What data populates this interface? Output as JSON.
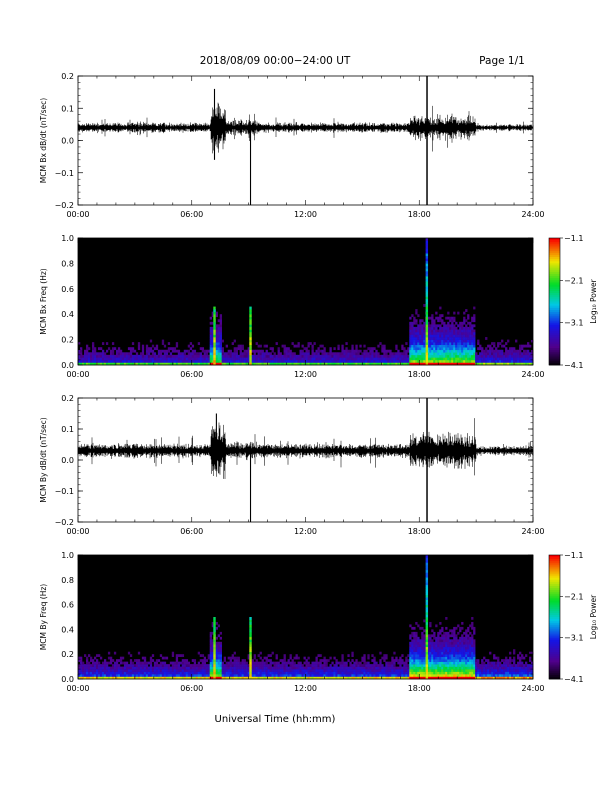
{
  "header": {
    "title": "2018/08/09  00:00−24:00 UT",
    "page": "Page 1/1"
  },
  "x_axis_label": "Universal Time (hh:mm)",
  "colorbar_title": "Log₁₀ Power",
  "chart_data": [
    {
      "type": "line",
      "ylabel": "MCM Bx dB/dt (nT/sec)",
      "x_range_hours": [
        0,
        24
      ],
      "x_ticks": [
        "00:00",
        "06:00",
        "12:00",
        "18:00",
        "24:00"
      ],
      "ylim": [
        -0.2,
        0.2
      ],
      "y_ticks": [
        "0.2",
        "0.1",
        "0.0",
        "−0.1",
        "−0.2"
      ],
      "y_tick_values": [
        0.2,
        0.1,
        0.0,
        -0.1,
        -0.2
      ],
      "baseline": 0.04,
      "noise_envelope": [
        {
          "from": 0.0,
          "to": 7.0,
          "amp": 0.012
        },
        {
          "from": 7.0,
          "to": 7.8,
          "amp": 0.06
        },
        {
          "from": 7.8,
          "to": 9.5,
          "amp": 0.018
        },
        {
          "from": 9.5,
          "to": 17.5,
          "amp": 0.012
        },
        {
          "from": 17.5,
          "to": 21.0,
          "amp": 0.03
        },
        {
          "from": 21.0,
          "to": 24.0,
          "amp": 0.008
        }
      ],
      "spikes": [
        {
          "x": 7.2,
          "min": -0.06,
          "max": 0.16
        },
        {
          "x": 9.1,
          "min": -0.2,
          "max": 0.05
        },
        {
          "x": 18.4,
          "min": -0.2,
          "max": 0.2
        },
        {
          "x": 18.42,
          "min": -0.2,
          "max": 0.2
        }
      ]
    },
    {
      "type": "heatmap",
      "ylabel": "MCM Bx Freq (Hz)",
      "x_range_hours": [
        0,
        24
      ],
      "x_ticks": [
        "00:00",
        "06:00",
        "12:00",
        "18:00",
        "24:00"
      ],
      "ylim": [
        0,
        1.0
      ],
      "y_ticks": [
        "1.0",
        "0.8",
        "0.6",
        "0.4",
        "0.2",
        "0.0"
      ],
      "y_tick_values": [
        1.0,
        0.8,
        0.6,
        0.4,
        0.2,
        0.0
      ],
      "colorbar_ticks": [
        "−1.1",
        "−2.1",
        "−3.1",
        "−4.1"
      ],
      "colorbar_range": [
        -4.1,
        -1.1
      ],
      "activity": [
        {
          "from": 0.0,
          "to": 7.0,
          "level": 0.35
        },
        {
          "from": 7.0,
          "to": 7.6,
          "level": 0.8
        },
        {
          "from": 7.6,
          "to": 17.5,
          "level": 0.35
        },
        {
          "from": 17.5,
          "to": 21.0,
          "level": 0.85
        },
        {
          "from": 21.0,
          "to": 24.0,
          "level": 0.4
        }
      ],
      "vertical_events": [
        {
          "x": 7.2,
          "fmax": 0.45
        },
        {
          "x": 9.1,
          "fmax": 0.45
        },
        {
          "x": 18.4,
          "fmax": 1.0
        }
      ]
    },
    {
      "type": "line",
      "ylabel": "MCM By dB/dt (nT/sec)",
      "x_range_hours": [
        0,
        24
      ],
      "x_ticks": [
        "00:00",
        "06:00",
        "12:00",
        "18:00",
        "24:00"
      ],
      "ylim": [
        -0.2,
        0.2
      ],
      "y_ticks": [
        "0.2",
        "0.1",
        "0.0",
        "−0.1",
        "−0.2"
      ],
      "y_tick_values": [
        0.2,
        0.1,
        0.0,
        -0.1,
        -0.2
      ],
      "baseline": 0.03,
      "noise_envelope": [
        {
          "from": 0.0,
          "to": 7.0,
          "amp": 0.018
        },
        {
          "from": 7.0,
          "to": 7.8,
          "amp": 0.07
        },
        {
          "from": 7.8,
          "to": 9.5,
          "amp": 0.022
        },
        {
          "from": 9.5,
          "to": 17.5,
          "amp": 0.018
        },
        {
          "from": 17.5,
          "to": 21.0,
          "amp": 0.045
        },
        {
          "from": 21.0,
          "to": 24.0,
          "amp": 0.012
        }
      ],
      "spikes": [
        {
          "x": 7.3,
          "min": -0.03,
          "max": 0.15
        },
        {
          "x": 9.1,
          "min": -0.2,
          "max": 0.04
        },
        {
          "x": 18.4,
          "min": -0.2,
          "max": 0.2
        },
        {
          "x": 18.42,
          "min": -0.2,
          "max": 0.2
        }
      ]
    },
    {
      "type": "heatmap",
      "ylabel": "MCM By Freq (Hz)",
      "x_range_hours": [
        0,
        24
      ],
      "x_ticks": [
        "00:00",
        "06:00",
        "12:00",
        "18:00",
        "24:00"
      ],
      "ylim": [
        0,
        1.0
      ],
      "y_ticks": [
        "1.0",
        "0.8",
        "0.6",
        "0.4",
        "0.2",
        "0.0"
      ],
      "y_tick_values": [
        1.0,
        0.8,
        0.6,
        0.4,
        0.2,
        0.0
      ],
      "colorbar_ticks": [
        "−1.1",
        "−2.1",
        "−3.1",
        "−4.1"
      ],
      "colorbar_range": [
        -4.1,
        -1.1
      ],
      "activity": [
        {
          "from": 0.0,
          "to": 7.0,
          "level": 0.45
        },
        {
          "from": 7.0,
          "to": 7.6,
          "level": 0.85
        },
        {
          "from": 7.6,
          "to": 17.5,
          "level": 0.45
        },
        {
          "from": 17.5,
          "to": 21.0,
          "level": 0.95
        },
        {
          "from": 21.0,
          "to": 24.0,
          "level": 0.5
        }
      ],
      "vertical_events": [
        {
          "x": 7.2,
          "fmax": 0.5
        },
        {
          "x": 9.1,
          "fmax": 0.5
        },
        {
          "x": 18.4,
          "fmax": 1.0
        }
      ]
    }
  ]
}
